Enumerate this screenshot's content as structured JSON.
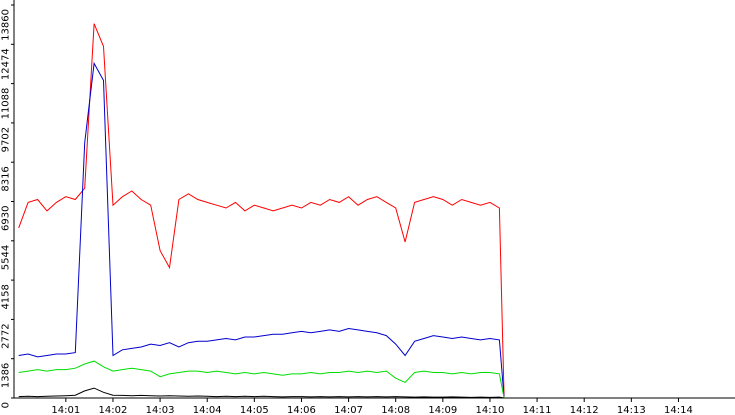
{
  "chart_data": {
    "type": "line",
    "x": [
      840.0,
      840.2,
      840.4,
      840.6,
      840.8,
      841.0,
      841.2,
      841.4,
      841.6,
      841.8,
      842.0,
      842.2,
      842.4,
      842.6,
      842.8,
      843.0,
      843.2,
      843.4,
      843.6,
      843.8,
      844.0,
      844.2,
      844.4,
      844.6,
      844.8,
      845.0,
      845.2,
      845.4,
      845.6,
      845.8,
      846.0,
      846.2,
      846.4,
      846.6,
      846.8,
      847.0,
      847.2,
      847.4,
      847.6,
      847.8,
      848.0,
      848.2,
      848.4,
      848.6,
      848.8,
      849.0,
      849.2,
      849.4,
      849.6,
      849.8,
      850.0,
      850.2,
      850.3
    ],
    "series": [
      {
        "color": "#ff0000",
        "values": [
          6000,
          6900,
          7000,
          6600,
          6900,
          7100,
          7000,
          7400,
          13200,
          12400,
          6800,
          7100,
          7300,
          7000,
          6800,
          5200,
          4600,
          7000,
          7200,
          7000,
          6900,
          6800,
          6700,
          6900,
          6600,
          6800,
          6700,
          6600,
          6700,
          6800,
          6700,
          6900,
          6800,
          7000,
          6900,
          7100,
          6800,
          7000,
          7100,
          6900,
          6700,
          5500,
          6900,
          7000,
          7100,
          7000,
          6800,
          7000,
          6900,
          6800,
          6900,
          6700,
          0
        ]
      },
      {
        "color": "#0000cc",
        "values": [
          1500,
          1550,
          1450,
          1500,
          1550,
          1550,
          1600,
          9000,
          11800,
          11200,
          1500,
          1700,
          1750,
          1800,
          1900,
          1850,
          1950,
          1800,
          1950,
          2000,
          2000,
          2050,
          2100,
          2050,
          2150,
          2150,
          2200,
          2250,
          2250,
          2300,
          2350,
          2300,
          2350,
          2400,
          2350,
          2450,
          2400,
          2350,
          2300,
          2200,
          1900,
          1500,
          2000,
          2100,
          2200,
          2150,
          2100,
          2150,
          2100,
          2050,
          2100,
          2050,
          0
        ]
      },
      {
        "color": "#00dd00",
        "values": [
          900,
          950,
          1000,
          950,
          1000,
          1000,
          1050,
          1200,
          1300,
          1100,
          950,
          1000,
          1050,
          1000,
          950,
          750,
          850,
          900,
          950,
          950,
          900,
          950,
          900,
          850,
          900,
          850,
          900,
          850,
          800,
          850,
          850,
          900,
          850,
          900,
          900,
          950,
          900,
          950,
          900,
          950,
          700,
          550,
          900,
          950,
          900,
          900,
          850,
          900,
          850,
          900,
          900,
          850,
          0
        ]
      },
      {
        "color": "#000000",
        "values": [
          50,
          60,
          50,
          60,
          70,
          80,
          100,
          250,
          350,
          200,
          100,
          90,
          80,
          90,
          80,
          70,
          80,
          70,
          60,
          70,
          60,
          50,
          60,
          50,
          60,
          50,
          60,
          50,
          40,
          50,
          50,
          40,
          50,
          40,
          50,
          40,
          50,
          40,
          50,
          40,
          50,
          40,
          30,
          40,
          30,
          30,
          40,
          30,
          20,
          30,
          20,
          30,
          0
        ]
      }
    ],
    "xlim": [
      839.9,
      855.2
    ],
    "xticks": [
      {
        "value": 841,
        "label": "14:01"
      },
      {
        "value": 842,
        "label": "14:02"
      },
      {
        "value": 843,
        "label": "14:03"
      },
      {
        "value": 844,
        "label": "14:04"
      },
      {
        "value": 845,
        "label": "14:05"
      },
      {
        "value": 846,
        "label": "14:06"
      },
      {
        "value": 847,
        "label": "14:07"
      },
      {
        "value": 848,
        "label": "14:08"
      },
      {
        "value": 849,
        "label": "14:09"
      },
      {
        "value": 850,
        "label": "14:10"
      },
      {
        "value": 851,
        "label": "14:11"
      },
      {
        "value": 852,
        "label": "14:12"
      },
      {
        "value": 853,
        "label": "14:13"
      },
      {
        "value": 854,
        "label": "14:14"
      }
    ],
    "ylim": [
      0,
      13860
    ],
    "yticks": [
      0,
      1386,
      2772,
      4158,
      5544,
      6930,
      8316,
      9702,
      11088,
      12474,
      13860
    ]
  }
}
